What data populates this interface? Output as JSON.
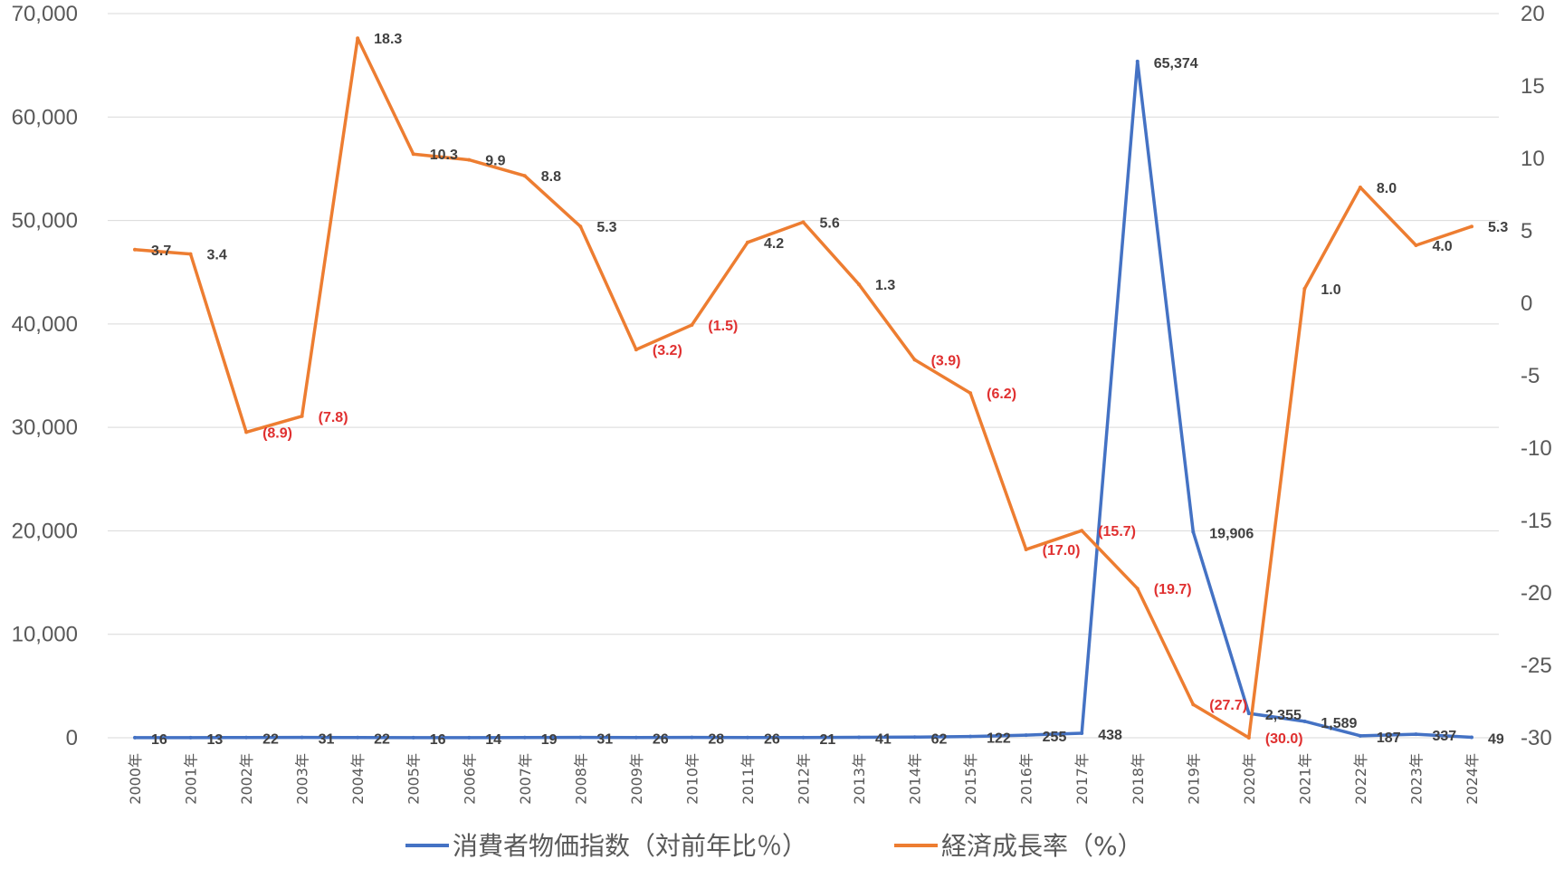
{
  "chart_data": {
    "type": "line",
    "title": "",
    "categories": [
      "2000年",
      "2001年",
      "2002年",
      "2003年",
      "2004年",
      "2005年",
      "2006年",
      "2007年",
      "2008年",
      "2009年",
      "2010年",
      "2011年",
      "2012年",
      "2013年",
      "2014年",
      "2015年",
      "2016年",
      "2017年",
      "2018年",
      "2019年",
      "2020年",
      "2021年",
      "2022年",
      "2023年",
      "2024年"
    ],
    "series": [
      {
        "name": "消費者物価指数（対前年比％）",
        "axis": "left",
        "color": "#4472C4",
        "values": [
          16,
          13,
          22,
          31,
          22,
          16,
          14,
          19,
          31,
          26,
          28,
          26,
          21,
          41,
          62,
          122,
          255,
          438,
          65374,
          19906,
          2355,
          1589,
          187,
          337,
          49
        ],
        "labels": [
          "16",
          "13",
          "22",
          "31",
          "22",
          "16",
          "14",
          "19",
          "31",
          "26",
          "28",
          "26",
          "21",
          "41",
          "62",
          "122",
          "255",
          "438",
          "65,374",
          "19,906",
          "2,355",
          "1,589",
          "187",
          "337",
          "49"
        ]
      },
      {
        "name": "経済成長率（%）",
        "axis": "right",
        "color": "#ED7D31",
        "values": [
          3.7,
          3.4,
          -8.9,
          -7.8,
          18.3,
          10.3,
          9.9,
          8.8,
          5.3,
          -3.2,
          -1.5,
          4.2,
          5.6,
          1.3,
          -3.9,
          -6.2,
          -17.0,
          -15.7,
          -19.7,
          -27.7,
          -30.0,
          1.0,
          8.0,
          4.0,
          5.3
        ],
        "labels": [
          "3.7",
          "3.4",
          "(8.9)",
          "(7.8)",
          "18.3",
          "10.3",
          "9.9",
          "8.8",
          "5.3",
          "(3.2)",
          "(1.5)",
          "4.2",
          "5.6",
          "1.3",
          "(3.9)",
          "(6.2)",
          "(17.0)",
          "(15.7)",
          "(19.7)",
          "(27.7)",
          "(30.0)",
          "1.0",
          "8.0",
          "4.0",
          "5.3"
        ]
      }
    ],
    "y_left": {
      "range": [
        0,
        70000
      ],
      "ticks": [
        "0",
        "10,000",
        "20,000",
        "30,000",
        "40,000",
        "50,000",
        "60,000",
        "70,000"
      ]
    },
    "y_right": {
      "range": [
        -30,
        20
      ],
      "ticks": [
        "-30",
        "-25",
        "-20",
        "-15",
        "-10",
        "-5",
        "0",
        "5",
        "10",
        "15",
        "20"
      ]
    },
    "grid": true,
    "legend_position": "bottom",
    "colors": {
      "negative_label": "#E03030",
      "label": "#404040",
      "grid": "#D9D9D9"
    }
  }
}
